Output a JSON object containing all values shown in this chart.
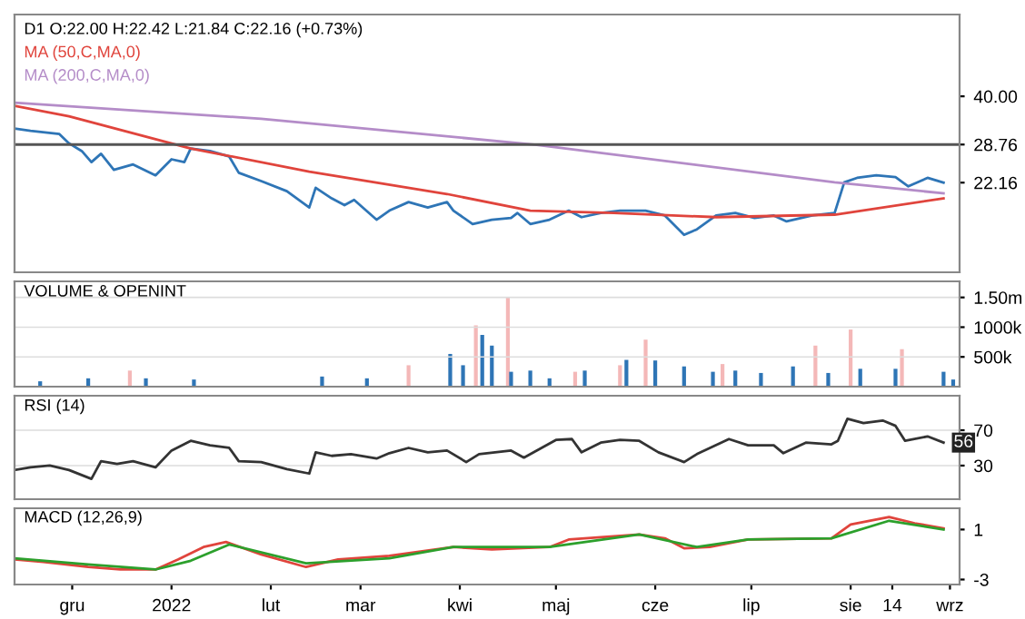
{
  "chart_data": [
    {
      "type": "line",
      "title": "D1 O:22.00 H:22.42 L:21.84 C:22.16 (+0.73%)",
      "log": "y",
      "ylim": [
        12,
        70
      ],
      "xlim": [
        "2021-11-13",
        "2022-09-04"
      ],
      "yticks": [
        {
          "value": 40,
          "label": "40.00"
        },
        {
          "value": 28.76,
          "label": "28.76"
        },
        {
          "value": 22.16,
          "label": "22.16"
        }
      ],
      "tick_labels": "y",
      "ref_lines": [
        {
          "axis": "y",
          "value": 28.76,
          "color": "#555555"
        }
      ],
      "series": [
        {
          "color": "#2e75b6",
          "x": [
            "2021-11-13",
            "2021-11-18",
            "2021-11-27",
            "2021-11-30",
            "2021-12-04",
            "2021-12-07",
            "2021-12-10",
            "2021-12-14",
            "2021-12-20",
            "2021-12-27",
            "2022-01-01",
            "2022-01-05",
            "2022-01-07",
            "2022-01-13",
            "2022-01-19",
            "2022-01-22",
            "2022-01-29",
            "2022-02-06",
            "2022-02-13",
            "2022-02-15",
            "2022-02-20",
            "2022-02-24",
            "2022-02-27",
            "2022-03-06",
            "2022-03-10",
            "2022-03-16",
            "2022-03-22",
            "2022-03-28",
            "2022-03-30",
            "2022-04-05",
            "2022-04-11",
            "2022-04-17",
            "2022-04-19",
            "2022-04-23",
            "2022-04-29",
            "2022-05-05",
            "2022-05-09",
            "2022-05-15",
            "2022-05-21",
            "2022-05-29",
            "2022-06-04",
            "2022-06-10",
            "2022-06-14",
            "2022-06-20",
            "2022-06-26",
            "2022-07-02",
            "2022-07-08",
            "2022-07-12",
            "2022-07-20",
            "2022-07-27",
            "2022-07-30",
            "2022-08-03",
            "2022-08-09",
            "2022-08-15",
            "2022-08-19",
            "2022-08-25",
            "2022-08-30"
          ],
          "values": [
            32.1,
            31.6,
            30.9,
            29.0,
            27.5,
            25.5,
            27.0,
            24.2,
            25.1,
            23.3,
            26.0,
            25.5,
            28.0,
            27.5,
            26.5,
            23.7,
            22.4,
            20.9,
            18.7,
            21.4,
            19.9,
            19.0,
            19.7,
            17.2,
            18.3,
            19.4,
            18.7,
            19.4,
            18.3,
            16.7,
            17.2,
            17.4,
            18.0,
            16.7,
            17.2,
            18.3,
            17.5,
            18.0,
            18.3,
            18.3,
            17.7,
            15.5,
            16.1,
            17.7,
            18.0,
            17.4,
            17.7,
            17.0,
            17.7,
            18.0,
            22.2,
            22.9,
            23.3,
            23.0,
            21.6,
            22.9,
            22.16
          ]
        },
        {
          "name": "MA (50,C,MA,0)",
          "color": "#e0443c",
          "x": [
            "2021-11-13",
            "2021-11-30",
            "2022-01-07",
            "2022-02-13",
            "2022-03-28",
            "2022-04-23",
            "2022-05-19",
            "2022-06-20",
            "2022-07-27",
            "2022-08-30"
          ],
          "values": [
            37.5,
            34.9,
            28.0,
            23.9,
            20.5,
            18.3,
            18.0,
            17.5,
            17.8,
            19.9
          ]
        },
        {
          "name": "MA (200,C,MA,0)",
          "color": "#b48cc8",
          "x": [
            "2021-11-13",
            "2022-01-29",
            "2022-04-25",
            "2022-07-27",
            "2022-08-30"
          ],
          "values": [
            38.3,
            34.3,
            28.7,
            22.2,
            20.6
          ]
        }
      ]
    },
    {
      "type": "bar",
      "title": "VOLUME & OPENINT",
      "ylim": [
        0,
        1770000
      ],
      "xlim": [
        "2021-11-13",
        "2022-09-04"
      ],
      "grid": "y",
      "tick_labels": "y",
      "yticks": [
        {
          "value": 500000,
          "label": "500k"
        },
        {
          "value": 1000000,
          "label": "1000k"
        },
        {
          "value": 1500000,
          "label": "1.50m"
        }
      ],
      "x": [
        "2021-11-21",
        "2021-12-06",
        "2021-12-19",
        "2021-12-24",
        "2022-01-08",
        "2022-02-17",
        "2022-03-03",
        "2022-03-16",
        "2022-03-29",
        "2022-04-02",
        "2022-04-06",
        "2022-04-08",
        "2022-04-11",
        "2022-04-16",
        "2022-04-17",
        "2022-04-23",
        "2022-04-29",
        "2022-05-07",
        "2022-05-10",
        "2022-05-21",
        "2022-05-23",
        "2022-05-29",
        "2022-06-01",
        "2022-06-10",
        "2022-06-19",
        "2022-06-22",
        "2022-06-26",
        "2022-07-04",
        "2022-07-14",
        "2022-07-21",
        "2022-07-25",
        "2022-08-01",
        "2022-08-04",
        "2022-08-15",
        "2022-08-17",
        "2022-08-30",
        "2022-09-02"
      ],
      "values": [
        90000,
        140000,
        270000,
        140000,
        120000,
        170000,
        140000,
        360000,
        550000,
        360000,
        1030000,
        870000,
        690000,
        1500000,
        250000,
        270000,
        140000,
        250000,
        270000,
        360000,
        450000,
        790000,
        440000,
        340000,
        250000,
        380000,
        270000,
        230000,
        340000,
        690000,
        230000,
        960000,
        300000,
        300000,
        630000,
        250000,
        120000
      ],
      "colors": [
        "#2e75b6",
        "#2e75b6",
        "#f4b8b8",
        "#2e75b6",
        "#2e75b6",
        "#2e75b6",
        "#2e75b6",
        "#f4b8b8",
        "#2e75b6",
        "#2e75b6",
        "#f4b8b8",
        "#2e75b6",
        "#2e75b6",
        "#f4b8b8",
        "#2e75b6",
        "#2e75b6",
        "#2e75b6",
        "#f4b8b8",
        "#2e75b6",
        "#f4b8b8",
        "#2e75b6",
        "#f4b8b8",
        "#2e75b6",
        "#2e75b6",
        "#2e75b6",
        "#f4b8b8",
        "#2e75b6",
        "#2e75b6",
        "#2e75b6",
        "#f4b8b8",
        "#2e75b6",
        "#f4b8b8",
        "#2e75b6",
        "#2e75b6",
        "#f4b8b8",
        "#2e75b6",
        "#2e75b6"
      ]
    },
    {
      "type": "line",
      "title": "RSI (14)",
      "ylim": [
        -8,
        109
      ],
      "xlim": [
        "2021-11-13",
        "2022-09-04"
      ],
      "yticks": [
        30,
        70
      ],
      "grid": "y",
      "tick_labels": "y",
      "annotations": [
        {
          "text": "56",
          "x": "2022-08-30",
          "y": 56
        }
      ],
      "series": [
        {
          "color": "#333333",
          "x": [
            "2021-11-13",
            "2021-11-18",
            "2021-11-24",
            "2021-11-30",
            "2021-12-07",
            "2021-12-10",
            "2021-12-15",
            "2021-12-20",
            "2021-12-27",
            "2022-01-01",
            "2022-01-07",
            "2022-01-13",
            "2022-01-19",
            "2022-01-22",
            "2022-01-29",
            "2022-02-06",
            "2022-02-13",
            "2022-02-15",
            "2022-02-20",
            "2022-02-26",
            "2022-03-06",
            "2022-03-10",
            "2022-03-16",
            "2022-03-22",
            "2022-03-28",
            "2022-04-03",
            "2022-04-07",
            "2022-04-17",
            "2022-04-21",
            "2022-05-01",
            "2022-05-06",
            "2022-05-09",
            "2022-05-15",
            "2022-05-21",
            "2022-05-27",
            "2022-06-02",
            "2022-06-10",
            "2022-06-14",
            "2022-06-24",
            "2022-06-30",
            "2022-07-08",
            "2022-07-11",
            "2022-07-18",
            "2022-07-26",
            "2022-07-28",
            "2022-07-31",
            "2022-08-05",
            "2022-08-11",
            "2022-08-15",
            "2022-08-18",
            "2022-08-25",
            "2022-08-30"
          ],
          "values": [
            25,
            28,
            30,
            25,
            15,
            35,
            32,
            35,
            28,
            47,
            58,
            53,
            50,
            35,
            34,
            26,
            21,
            45,
            41,
            43,
            38,
            44,
            50,
            45,
            47,
            34,
            43,
            47,
            39,
            59,
            60,
            45,
            56,
            59,
            58,
            45,
            34,
            43,
            60,
            53,
            53,
            44,
            56,
            54,
            58,
            83,
            78,
            81,
            75,
            58,
            63,
            56
          ]
        }
      ]
    },
    {
      "type": "line",
      "title": "MACD (12,26,9)",
      "ylim": [
        -3.4,
        2.7
      ],
      "xlim": [
        "2021-11-13",
        "2022-09-04"
      ],
      "yticks": [
        1,
        -3
      ],
      "xticks": [
        {
          "value": "2021-12-01",
          "label": "gru"
        },
        {
          "value": "2022-01-01",
          "label": "2022"
        },
        {
          "value": "2022-02-01",
          "label": "lut"
        },
        {
          "value": "2022-03-01",
          "label": "mar"
        },
        {
          "value": "2022-04-01",
          "label": "kwi"
        },
        {
          "value": "2022-05-01",
          "label": "maj"
        },
        {
          "value": "2022-06-01",
          "label": "cze"
        },
        {
          "value": "2022-07-01",
          "label": "lip"
        },
        {
          "value": "2022-08-01",
          "label": "sie"
        },
        {
          "value": "2022-08-14",
          "label": "14"
        },
        {
          "value": "2022-09-01",
          "label": "wrz"
        }
      ],
      "series": [
        {
          "color": "#e0443c",
          "x": [
            "2021-11-13",
            "2021-11-22",
            "2021-12-06",
            "2021-12-16",
            "2021-12-27",
            "2022-01-03",
            "2022-01-11",
            "2022-01-18",
            "2022-01-29",
            "2022-02-12",
            "2022-02-22",
            "2022-03-10",
            "2022-03-30",
            "2022-04-11",
            "2022-04-29",
            "2022-05-05",
            "2022-05-27",
            "2022-06-04",
            "2022-06-10",
            "2022-06-18",
            "2022-06-30",
            "2022-07-26",
            "2022-08-01",
            "2022-08-13",
            "2022-08-21",
            "2022-08-30"
          ],
          "values": [
            -1.4,
            -1.6,
            -2.0,
            -2.2,
            -2.2,
            -1.4,
            -0.4,
            0.0,
            -1.0,
            -2.0,
            -1.4,
            -1.1,
            -0.4,
            -0.6,
            -0.4,
            0.2,
            0.6,
            0.3,
            -0.5,
            -0.4,
            0.2,
            0.3,
            1.4,
            2.0,
            1.5,
            1.1
          ]
        },
        {
          "color": "#2ca02c",
          "x": [
            "2021-11-13",
            "2021-12-06",
            "2021-12-27",
            "2022-01-07",
            "2022-01-19",
            "2022-02-12",
            "2022-03-10",
            "2022-03-30",
            "2022-04-29",
            "2022-05-27",
            "2022-06-14",
            "2022-06-30",
            "2022-07-26",
            "2022-08-13",
            "2022-08-30"
          ],
          "values": [
            -1.3,
            -1.8,
            -2.2,
            -1.5,
            -0.2,
            -1.7,
            -1.3,
            -0.4,
            -0.4,
            0.6,
            -0.4,
            0.2,
            0.3,
            1.7,
            1.0
          ]
        }
      ]
    }
  ]
}
